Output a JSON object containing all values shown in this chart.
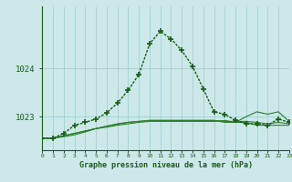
{
  "title": "Graphe pression niveau de la mer (hPa)",
  "background_color": "#cce8e8",
  "grid_color": "#99cccc",
  "line_color_main": "#1a5c1a",
  "line_color_flat": "#2e7d2e",
  "x_labels": [
    "0",
    "1",
    "2",
    "3",
    "4",
    "5",
    "6",
    "7",
    "8",
    "9",
    "10",
    "11",
    "12",
    "13",
    "14",
    "15",
    "16",
    "17",
    "18",
    "19",
    "20",
    "21",
    "22",
    "23"
  ],
  "y_ticks": [
    1023,
    1024
  ],
  "ylim": [
    1022.3,
    1025.3
  ],
  "xlim": [
    0,
    23
  ],
  "series_main": [
    1022.55,
    1022.55,
    1022.65,
    1022.82,
    1022.88,
    1022.95,
    1023.08,
    1023.28,
    1023.55,
    1023.88,
    1024.52,
    1024.78,
    1024.62,
    1024.38,
    1024.05,
    1023.58,
    1023.1,
    1023.05,
    1022.92,
    1022.85,
    1022.85,
    1022.82,
    1022.95,
    1022.88
  ],
  "series_flat1": [
    1022.55,
    1022.55,
    1022.6,
    1022.65,
    1022.7,
    1022.75,
    1022.8,
    1022.85,
    1022.88,
    1022.9,
    1022.92,
    1022.92,
    1022.92,
    1022.92,
    1022.92,
    1022.92,
    1022.92,
    1022.88,
    1022.88,
    1022.88,
    1022.82,
    1022.82,
    1022.82,
    1022.82
  ],
  "series_flat2": [
    1022.55,
    1022.55,
    1022.6,
    1022.65,
    1022.7,
    1022.75,
    1022.8,
    1022.84,
    1022.88,
    1022.9,
    1022.92,
    1022.92,
    1022.92,
    1022.92,
    1022.92,
    1022.92,
    1022.92,
    1022.9,
    1022.9,
    1022.9,
    1022.88,
    1022.85,
    1022.88,
    1022.85
  ],
  "series_flat3": [
    1022.55,
    1022.55,
    1022.58,
    1022.62,
    1022.68,
    1022.75,
    1022.78,
    1022.82,
    1022.85,
    1022.88,
    1022.9,
    1022.9,
    1022.9,
    1022.9,
    1022.9,
    1022.9,
    1022.9,
    1022.92,
    1022.88,
    1023.0,
    1023.1,
    1023.05,
    1023.1,
    1022.9
  ]
}
